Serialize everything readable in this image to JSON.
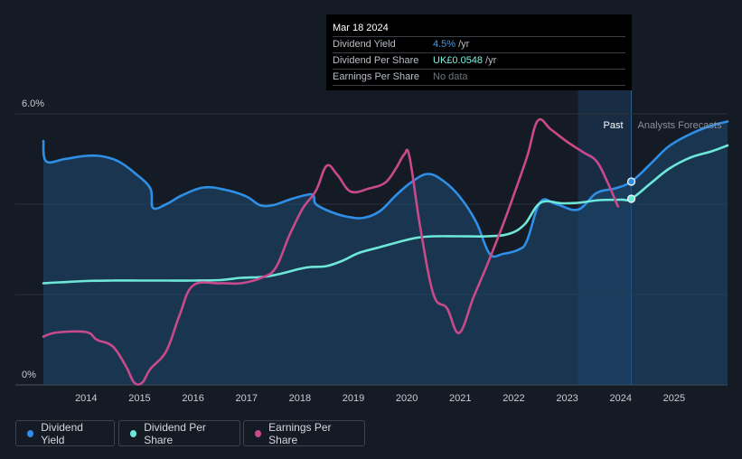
{
  "tooltip": {
    "date": "Mar 18 2024",
    "rows": [
      {
        "label": "Dividend Yield",
        "value": "4.5%",
        "unit": "/yr"
      },
      {
        "label": "Dividend Per Share",
        "value": "UK£0.0548",
        "unit": "/yr"
      },
      {
        "label": "Earnings Per Share",
        "value": "No data",
        "unit": ""
      }
    ]
  },
  "legend": {
    "items": [
      {
        "label": "Dividend Yield",
        "color": "#2f8fe6"
      },
      {
        "label": "Dividend Per Share",
        "color": "#6ee7d8"
      },
      {
        "label": "Earnings Per Share",
        "color": "#c94a8b"
      }
    ]
  },
  "chart_data": {
    "type": "line",
    "title": "",
    "y_axis": {
      "top_label": "6.0%",
      "bottom_label": "0%",
      "ylim": [
        0,
        6
      ]
    },
    "x_axis": {
      "tick_labels": [
        "2014",
        "2015",
        "2016",
        "2017",
        "2018",
        "2019",
        "2020",
        "2021",
        "2022",
        "2023",
        "2024",
        "2025"
      ],
      "xlim": [
        2013.2,
        2026.0
      ]
    },
    "region_labels": {
      "past": "Past",
      "forecast": "Analysts Forecasts"
    },
    "past_band": [
      2023.2,
      2024.2
    ],
    "forecast_start": 2024.2,
    "series": [
      {
        "name": "Dividend Yield",
        "color": "#2f8fe6",
        "filled": true,
        "points": [
          [
            2013.2,
            5.4
          ],
          [
            2013.25,
            4.95
          ],
          [
            2013.6,
            5.0
          ],
          [
            2014.0,
            5.07
          ],
          [
            2014.3,
            5.06
          ],
          [
            2014.6,
            4.95
          ],
          [
            2014.9,
            4.7
          ],
          [
            2015.2,
            4.35
          ],
          [
            2015.25,
            3.92
          ],
          [
            2015.5,
            4.0
          ],
          [
            2015.8,
            4.2
          ],
          [
            2016.2,
            4.37
          ],
          [
            2016.6,
            4.32
          ],
          [
            2017.0,
            4.17
          ],
          [
            2017.25,
            3.98
          ],
          [
            2017.5,
            3.98
          ],
          [
            2017.8,
            4.1
          ],
          [
            2018.1,
            4.2
          ],
          [
            2018.25,
            4.2
          ],
          [
            2018.3,
            4.0
          ],
          [
            2018.6,
            3.82
          ],
          [
            2018.9,
            3.72
          ],
          [
            2019.2,
            3.7
          ],
          [
            2019.5,
            3.85
          ],
          [
            2019.8,
            4.2
          ],
          [
            2020.1,
            4.5
          ],
          [
            2020.4,
            4.67
          ],
          [
            2020.7,
            4.5
          ],
          [
            2021.0,
            4.15
          ],
          [
            2021.3,
            3.6
          ],
          [
            2021.55,
            2.9
          ],
          [
            2021.8,
            2.9
          ],
          [
            2022.1,
            3.0
          ],
          [
            2022.25,
            3.2
          ],
          [
            2022.5,
            4.05
          ],
          [
            2022.8,
            4.0
          ],
          [
            2023.2,
            3.88
          ],
          [
            2023.55,
            4.25
          ],
          [
            2023.9,
            4.35
          ],
          [
            2024.2,
            4.5
          ],
          [
            2024.55,
            4.88
          ],
          [
            2024.9,
            5.28
          ],
          [
            2025.3,
            5.55
          ],
          [
            2025.7,
            5.74
          ],
          [
            2026.0,
            5.83
          ]
        ]
      },
      {
        "name": "Dividend Per Share",
        "color": "#6ee7d8",
        "filled": false,
        "points": [
          [
            2013.2,
            2.25
          ],
          [
            2013.5,
            2.27
          ],
          [
            2014.0,
            2.3
          ],
          [
            2014.5,
            2.31
          ],
          [
            2015.0,
            2.31
          ],
          [
            2015.5,
            2.31
          ],
          [
            2016.0,
            2.31
          ],
          [
            2016.5,
            2.32
          ],
          [
            2016.9,
            2.37
          ],
          [
            2017.3,
            2.39
          ],
          [
            2017.6,
            2.45
          ],
          [
            2018.0,
            2.57
          ],
          [
            2018.2,
            2.61
          ],
          [
            2018.5,
            2.63
          ],
          [
            2018.8,
            2.75
          ],
          [
            2019.1,
            2.92
          ],
          [
            2019.5,
            3.05
          ],
          [
            2019.9,
            3.18
          ],
          [
            2020.2,
            3.26
          ],
          [
            2020.5,
            3.29
          ],
          [
            2021.0,
            3.29
          ],
          [
            2021.5,
            3.29
          ],
          [
            2021.9,
            3.34
          ],
          [
            2022.2,
            3.55
          ],
          [
            2022.5,
            4.03
          ],
          [
            2022.9,
            4.02
          ],
          [
            2023.2,
            4.03
          ],
          [
            2023.6,
            4.09
          ],
          [
            2024.0,
            4.1
          ],
          [
            2024.2,
            4.12
          ],
          [
            2024.55,
            4.45
          ],
          [
            2024.9,
            4.78
          ],
          [
            2025.3,
            5.03
          ],
          [
            2025.7,
            5.17
          ],
          [
            2026.0,
            5.3
          ]
        ]
      },
      {
        "name": "Earnings Per Share",
        "color": "#c94a8b",
        "filled": false,
        "points": [
          [
            2013.2,
            1.07
          ],
          [
            2013.45,
            1.16
          ],
          [
            2014.0,
            1.17
          ],
          [
            2014.2,
            1.0
          ],
          [
            2014.5,
            0.85
          ],
          [
            2014.75,
            0.4
          ],
          [
            2014.9,
            0.05
          ],
          [
            2015.05,
            0.05
          ],
          [
            2015.2,
            0.35
          ],
          [
            2015.5,
            0.75
          ],
          [
            2015.75,
            1.55
          ],
          [
            2016.0,
            2.2
          ],
          [
            2016.5,
            2.25
          ],
          [
            2016.9,
            2.25
          ],
          [
            2017.3,
            2.38
          ],
          [
            2017.55,
            2.6
          ],
          [
            2017.8,
            3.3
          ],
          [
            2018.05,
            3.9
          ],
          [
            2018.3,
            4.3
          ],
          [
            2018.5,
            4.85
          ],
          [
            2018.7,
            4.65
          ],
          [
            2018.95,
            4.28
          ],
          [
            2019.3,
            4.35
          ],
          [
            2019.6,
            4.48
          ],
          [
            2019.8,
            4.8
          ],
          [
            2019.95,
            5.1
          ],
          [
            2020.05,
            5.05
          ],
          [
            2020.25,
            3.5
          ],
          [
            2020.5,
            2.0
          ],
          [
            2020.75,
            1.7
          ],
          [
            2020.98,
            1.15
          ],
          [
            2021.25,
            1.95
          ],
          [
            2021.5,
            2.65
          ],
          [
            2021.8,
            3.55
          ],
          [
            2022.0,
            4.2
          ],
          [
            2022.25,
            5.05
          ],
          [
            2022.45,
            5.85
          ],
          [
            2022.7,
            5.65
          ],
          [
            2023.0,
            5.38
          ],
          [
            2023.3,
            5.15
          ],
          [
            2023.55,
            4.95
          ],
          [
            2023.75,
            4.5
          ],
          [
            2023.95,
            3.95
          ]
        ]
      }
    ],
    "markers": [
      {
        "series": "Dividend Yield",
        "x": 2024.2,
        "y": 4.5
      },
      {
        "series": "Dividend Per Share",
        "x": 2024.2,
        "y": 4.12
      }
    ]
  }
}
